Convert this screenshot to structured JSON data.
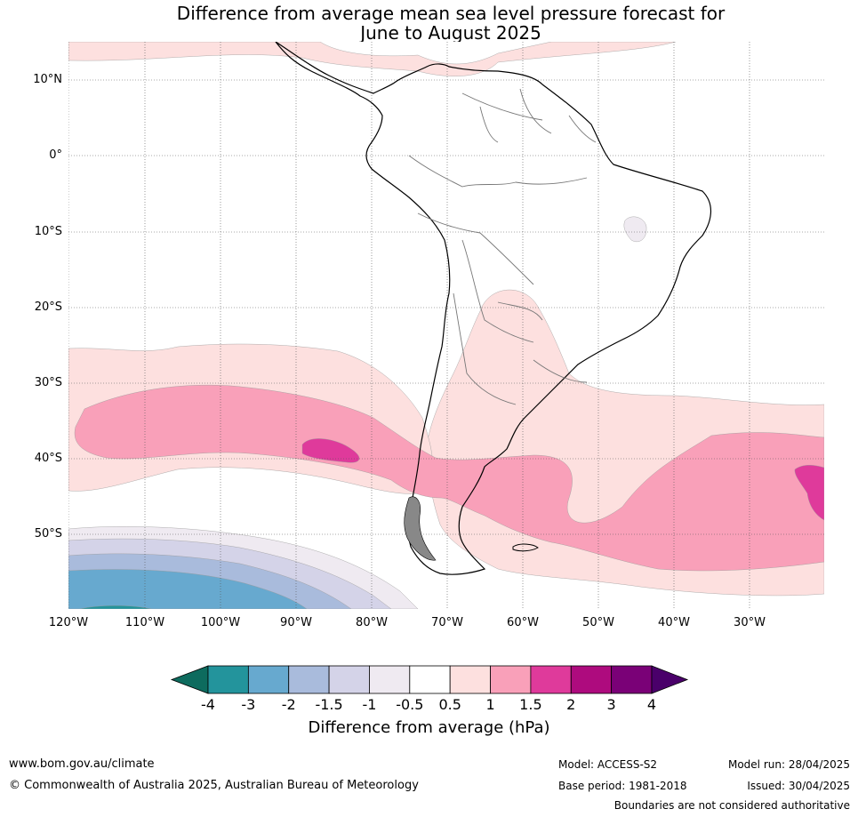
{
  "title_line1": "Difference from average mean sea level pressure forecast for",
  "title_line2": "June to August 2025",
  "lat_labels": [
    "10°N",
    "0°",
    "10°S",
    "20°S",
    "30°S",
    "40°S",
    "50°S"
  ],
  "lon_labels": [
    "120°W",
    "110°W",
    "100°W",
    "90°W",
    "80°W",
    "70°W",
    "60°W",
    "50°W",
    "40°W",
    "30°W"
  ],
  "colorbar": {
    "title": "Difference from average (hPa)",
    "tick_labels": [
      "-4",
      "-3",
      "-2",
      "-1.5",
      "-1",
      "-0.5",
      "0.5",
      "1",
      "1.5",
      "2",
      "3",
      "4"
    ],
    "colors": [
      "#0d6b5e",
      "#23949c",
      "#67a9cf",
      "#a9bbdc",
      "#d4d3e8",
      "#efeaf1",
      "#ffffff",
      "#fde0df",
      "#f9a0b9",
      "#df3a9b",
      "#ae0b7e",
      "#7a0177",
      "#4a006a"
    ]
  },
  "footer": {
    "url": "www.bom.gov.au/climate",
    "copyright": "© Commonwealth of Australia 2025, Australian Bureau of Meteorology",
    "model": "Model: ACCESS-S2",
    "base_period": "Base period: 1981-2018",
    "model_run": "Model run: 28/04/2025",
    "issued": "Issued: 30/04/2025",
    "disclaimer": "Boundaries are not considered authoritative"
  }
}
